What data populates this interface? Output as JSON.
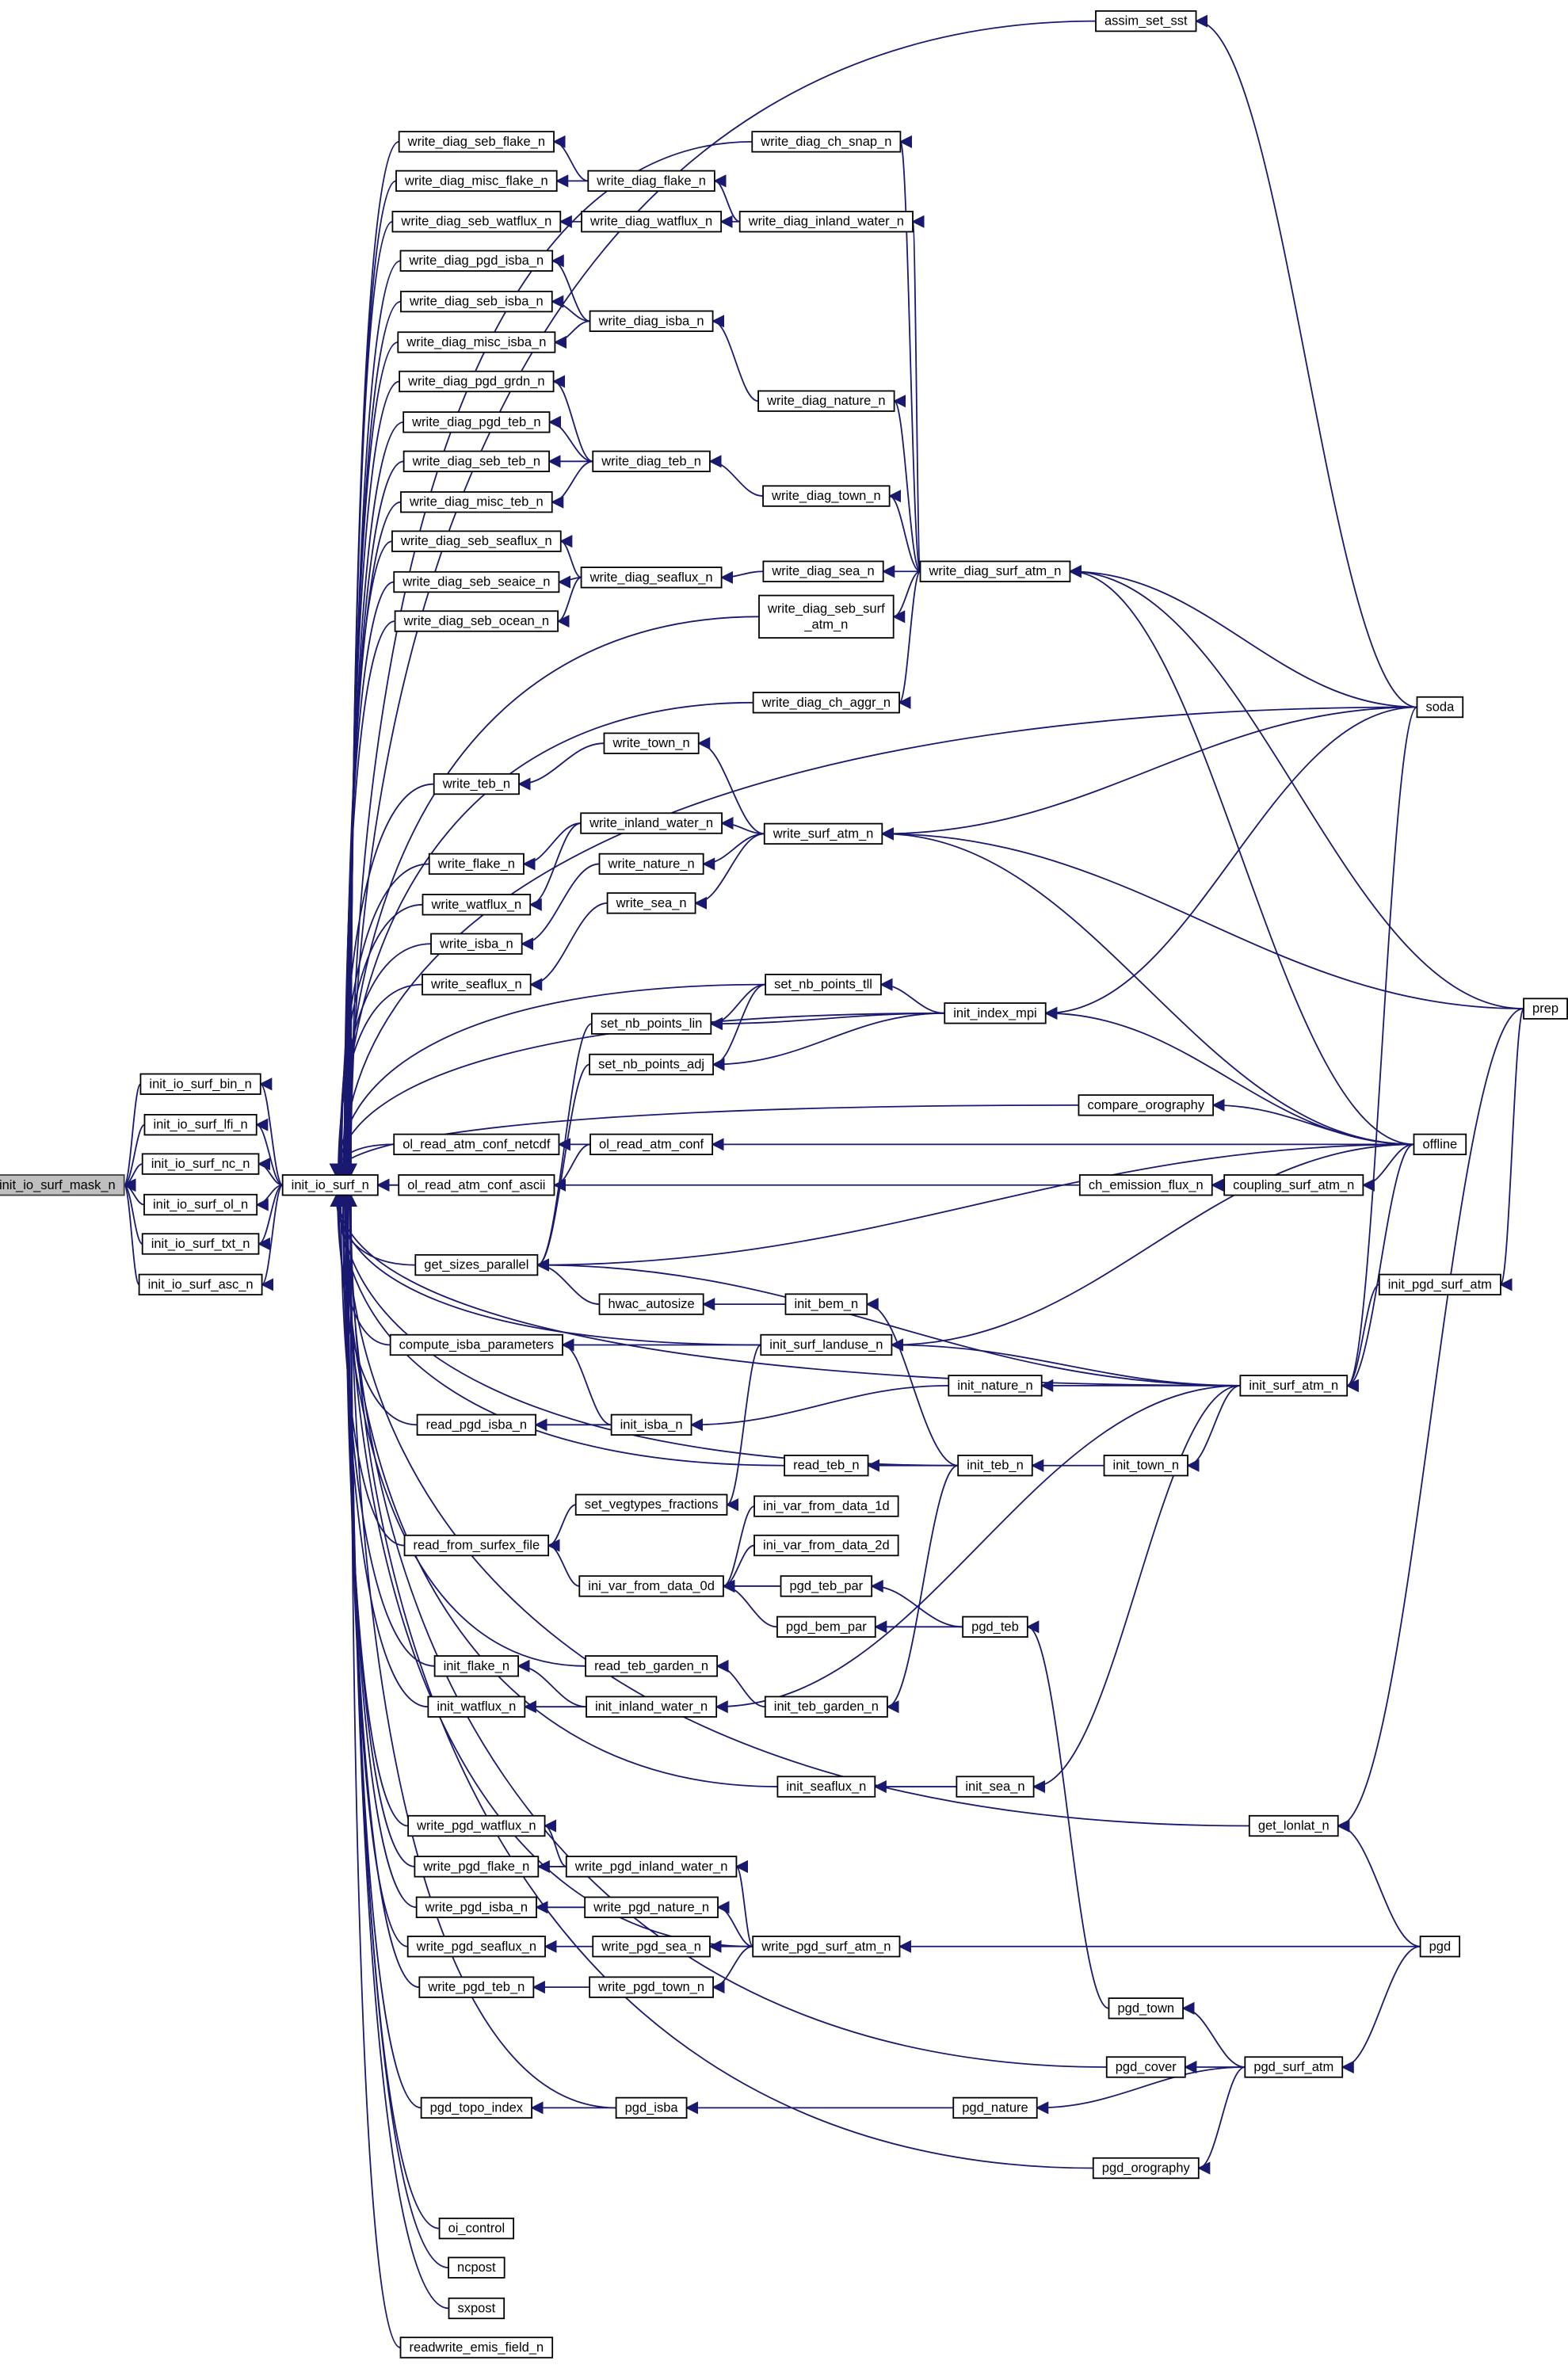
{
  "graph": {
    "root": "init_io_surf_mask_n",
    "colors": {
      "edge": "#191970",
      "root_fill": "#bfbfbf",
      "node_fill": "#ffffff"
    },
    "nodes": [
      {
        "label": "init_io_surf_mask_n"
      },
      {
        "label": "init_io_surf_bin_n"
      },
      {
        "label": "init_io_surf_lfi_n"
      },
      {
        "label": "init_io_surf_nc_n"
      },
      {
        "label": "init_io_surf_ol_n"
      },
      {
        "label": "init_io_surf_txt_n"
      },
      {
        "label": "init_io_surf_asc_n"
      },
      {
        "label": "init_io_surf_n"
      },
      {
        "label": "write_diag_seb_flake_n"
      },
      {
        "label": "write_diag_misc_flake_n"
      },
      {
        "label": "write_diag_seb_watflux_n"
      },
      {
        "label": "write_diag_pgd_isba_n"
      },
      {
        "label": "write_diag_seb_isba_n"
      },
      {
        "label": "write_diag_misc_isba_n"
      },
      {
        "label": "write_diag_pgd_grdn_n"
      },
      {
        "label": "write_diag_pgd_teb_n"
      },
      {
        "label": "write_diag_seb_teb_n"
      },
      {
        "label": "write_diag_misc_teb_n"
      },
      {
        "label": "write_diag_seb_seaflux_n"
      },
      {
        "label": "write_diag_seb_seaice_n"
      },
      {
        "label": "write_diag_seb_ocean_n"
      },
      {
        "label": "write_teb_n"
      },
      {
        "label": "write_flake_n"
      },
      {
        "label": "write_watflux_n"
      },
      {
        "label": "write_isba_n"
      },
      {
        "label": "write_seaflux_n"
      },
      {
        "label": "ol_read_atm_conf_netcdf"
      },
      {
        "label": "ol_read_atm_conf_ascii"
      },
      {
        "label": "get_sizes_parallel"
      },
      {
        "label": "compute_isba_parameters"
      },
      {
        "label": "read_pgd_isba_n"
      },
      {
        "label": "read_from_surfex_file"
      },
      {
        "label": "init_flake_n"
      },
      {
        "label": "init_watflux_n"
      },
      {
        "label": "write_pgd_watflux_n"
      },
      {
        "label": "write_pgd_flake_n"
      },
      {
        "label": "write_pgd_isba_n"
      },
      {
        "label": "write_pgd_seaflux_n"
      },
      {
        "label": "write_pgd_teb_n"
      },
      {
        "label": "pgd_topo_index"
      },
      {
        "label": "oi_control"
      },
      {
        "label": "ncpost"
      },
      {
        "label": "sxpost"
      },
      {
        "label": "readwrite_emis_field_n"
      },
      {
        "label": "write_diag_flake_n"
      },
      {
        "label": "write_diag_watflux_n"
      },
      {
        "label": "write_diag_isba_n"
      },
      {
        "label": "write_diag_teb_n"
      },
      {
        "label": "write_diag_seaflux_n"
      },
      {
        "label": "write_town_n"
      },
      {
        "label": "write_inland_water_n"
      },
      {
        "label": "write_nature_n"
      },
      {
        "label": "write_sea_n"
      },
      {
        "label": "set_nb_points_lin"
      },
      {
        "label": "set_nb_points_adj"
      },
      {
        "label": "ol_read_atm_conf"
      },
      {
        "label": "hwac_autosize"
      },
      {
        "label": "init_isba_n"
      },
      {
        "label": "set_vegtypes_fractions"
      },
      {
        "label": "ini_var_from_data_0d"
      },
      {
        "label": "read_teb_garden_n"
      },
      {
        "label": "init_inland_water_n"
      },
      {
        "label": "write_pgd_inland_water_n"
      },
      {
        "label": "write_pgd_nature_n"
      },
      {
        "label": "write_pgd_sea_n"
      },
      {
        "label": "write_pgd_town_n"
      },
      {
        "label": "pgd_isba"
      },
      {
        "label": "write_diag_ch_snap_n"
      },
      {
        "label": "write_diag_inland_water_n"
      },
      {
        "label": "write_diag_nature_n"
      },
      {
        "label": "write_diag_town_n"
      },
      {
        "label": "write_diag_sea_n"
      },
      {
        "label": "write_diag_seb_surf_atm_n",
        "lines": [
          "write_diag_seb_surf",
          "_atm_n"
        ]
      },
      {
        "label": "write_diag_ch_aggr_n"
      },
      {
        "label": "write_surf_atm_n"
      },
      {
        "label": "set_nb_points_tll"
      },
      {
        "label": "init_bem_n"
      },
      {
        "label": "init_surf_landuse_n"
      },
      {
        "label": "read_teb_n"
      },
      {
        "label": "ini_var_from_data_1d"
      },
      {
        "label": "ini_var_from_data_2d"
      },
      {
        "label": "pgd_teb_par"
      },
      {
        "label": "pgd_bem_par"
      },
      {
        "label": "init_teb_garden_n"
      },
      {
        "label": "init_seaflux_n"
      },
      {
        "label": "write_pgd_surf_atm_n"
      },
      {
        "label": "write_diag_surf_atm_n"
      },
      {
        "label": "init_index_mpi"
      },
      {
        "label": "init_nature_n"
      },
      {
        "label": "init_teb_n"
      },
      {
        "label": "pgd_teb"
      },
      {
        "label": "init_sea_n"
      },
      {
        "label": "pgd_nature"
      },
      {
        "label": "assim_set_sst"
      },
      {
        "label": "compare_orography"
      },
      {
        "label": "ch_emission_flux_n"
      },
      {
        "label": "init_town_n"
      },
      {
        "label": "pgd_town"
      },
      {
        "label": "pgd_cover"
      },
      {
        "label": "pgd_orography"
      },
      {
        "label": "coupling_surf_atm_n"
      },
      {
        "label": "init_surf_atm_n"
      },
      {
        "label": "get_lonlat_n"
      },
      {
        "label": "pgd_surf_atm"
      },
      {
        "label": "soda"
      },
      {
        "label": "offline"
      },
      {
        "label": "init_pgd_surf_atm"
      },
      {
        "label": "pgd"
      },
      {
        "label": "prep"
      }
    ],
    "edges": [
      [
        "init_io_surf_bin_n",
        "init_io_surf_mask_n"
      ],
      [
        "init_io_surf_lfi_n",
        "init_io_surf_mask_n"
      ],
      [
        "init_io_surf_nc_n",
        "init_io_surf_mask_n"
      ],
      [
        "init_io_surf_ol_n",
        "init_io_surf_mask_n"
      ],
      [
        "init_io_surf_txt_n",
        "init_io_surf_mask_n"
      ],
      [
        "init_io_surf_asc_n",
        "init_io_surf_mask_n"
      ],
      [
        "init_io_surf_n",
        "init_io_surf_bin_n"
      ],
      [
        "init_io_surf_n",
        "init_io_surf_lfi_n"
      ],
      [
        "init_io_surf_n",
        "init_io_surf_nc_n"
      ],
      [
        "init_io_surf_n",
        "init_io_surf_ol_n"
      ],
      [
        "init_io_surf_n",
        "init_io_surf_txt_n"
      ],
      [
        "init_io_surf_n",
        "init_io_surf_asc_n"
      ],
      [
        "write_diag_seb_flake_n",
        "init_io_surf_n"
      ],
      [
        "write_diag_misc_flake_n",
        "init_io_surf_n"
      ],
      [
        "write_diag_seb_watflux_n",
        "init_io_surf_n"
      ],
      [
        "write_diag_pgd_isba_n",
        "init_io_surf_n"
      ],
      [
        "write_diag_seb_isba_n",
        "init_io_surf_n"
      ],
      [
        "write_diag_misc_isba_n",
        "init_io_surf_n"
      ],
      [
        "write_diag_pgd_grdn_n",
        "init_io_surf_n"
      ],
      [
        "write_diag_pgd_teb_n",
        "init_io_surf_n"
      ],
      [
        "write_diag_seb_teb_n",
        "init_io_surf_n"
      ],
      [
        "write_diag_misc_teb_n",
        "init_io_surf_n"
      ],
      [
        "write_diag_seb_seaflux_n",
        "init_io_surf_n"
      ],
      [
        "write_diag_seb_seaice_n",
        "init_io_surf_n"
      ],
      [
        "write_diag_seb_ocean_n",
        "init_io_surf_n"
      ],
      [
        "write_teb_n",
        "init_io_surf_n"
      ],
      [
        "write_flake_n",
        "init_io_surf_n"
      ],
      [
        "write_watflux_n",
        "init_io_surf_n"
      ],
      [
        "write_isba_n",
        "init_io_surf_n"
      ],
      [
        "write_seaflux_n",
        "init_io_surf_n"
      ],
      [
        "ol_read_atm_conf_netcdf",
        "init_io_surf_n"
      ],
      [
        "ol_read_atm_conf_ascii",
        "init_io_surf_n"
      ],
      [
        "get_sizes_parallel",
        "init_io_surf_n"
      ],
      [
        "compute_isba_parameters",
        "init_io_surf_n"
      ],
      [
        "read_pgd_isba_n",
        "init_io_surf_n"
      ],
      [
        "read_from_surfex_file",
        "init_io_surf_n"
      ],
      [
        "init_flake_n",
        "init_io_surf_n"
      ],
      [
        "init_watflux_n",
        "init_io_surf_n"
      ],
      [
        "write_pgd_watflux_n",
        "init_io_surf_n"
      ],
      [
        "write_pgd_flake_n",
        "init_io_surf_n"
      ],
      [
        "write_pgd_isba_n",
        "init_io_surf_n"
      ],
      [
        "write_pgd_seaflux_n",
        "init_io_surf_n"
      ],
      [
        "write_pgd_teb_n",
        "init_io_surf_n"
      ],
      [
        "pgd_topo_index",
        "init_io_surf_n"
      ],
      [
        "oi_control",
        "init_io_surf_n"
      ],
      [
        "ncpost",
        "init_io_surf_n"
      ],
      [
        "sxpost",
        "init_io_surf_n"
      ],
      [
        "readwrite_emis_field_n",
        "init_io_surf_n"
      ],
      [
        "assim_set_sst",
        "init_io_surf_n"
      ],
      [
        "soda",
        "init_io_surf_n"
      ],
      [
        "write_diag_ch_snap_n",
        "init_io_surf_n"
      ],
      [
        "write_diag_seb_surf_atm_n",
        "init_io_surf_n"
      ],
      [
        "write_diag_ch_aggr_n",
        "init_io_surf_n"
      ],
      [
        "init_index_mpi",
        "init_io_surf_n"
      ],
      [
        "set_nb_points_tll",
        "init_io_surf_n"
      ],
      [
        "compare_orography",
        "init_io_surf_n"
      ],
      [
        "ch_emission_flux_n",
        "init_io_surf_n"
      ],
      [
        "init_surf_landuse_n",
        "init_io_surf_n"
      ],
      [
        "init_surf_atm_n",
        "init_io_surf_n"
      ],
      [
        "read_teb_n",
        "init_io_surf_n"
      ],
      [
        "init_teb_n",
        "init_io_surf_n"
      ],
      [
        "read_teb_garden_n",
        "init_io_surf_n"
      ],
      [
        "init_seaflux_n",
        "init_io_surf_n"
      ],
      [
        "get_lonlat_n",
        "init_io_surf_n"
      ],
      [
        "write_pgd_surf_atm_n",
        "init_io_surf_n"
      ],
      [
        "pgd_cover",
        "init_io_surf_n"
      ],
      [
        "pgd_isba",
        "init_io_surf_n"
      ],
      [
        "pgd_orography",
        "init_io_surf_n"
      ],
      [
        "write_diag_flake_n",
        "write_diag_seb_flake_n"
      ],
      [
        "write_diag_flake_n",
        "write_diag_misc_flake_n"
      ],
      [
        "write_diag_watflux_n",
        "write_diag_seb_watflux_n"
      ],
      [
        "write_diag_isba_n",
        "write_diag_pgd_isba_n"
      ],
      [
        "write_diag_isba_n",
        "write_diag_seb_isba_n"
      ],
      [
        "write_diag_isba_n",
        "write_diag_misc_isba_n"
      ],
      [
        "write_diag_teb_n",
        "write_diag_pgd_grdn_n"
      ],
      [
        "write_diag_teb_n",
        "write_diag_pgd_teb_n"
      ],
      [
        "write_diag_teb_n",
        "write_diag_seb_teb_n"
      ],
      [
        "write_diag_teb_n",
        "write_diag_misc_teb_n"
      ],
      [
        "write_diag_seaflux_n",
        "write_diag_seb_seaflux_n"
      ],
      [
        "write_diag_seaflux_n",
        "write_diag_seb_seaice_n"
      ],
      [
        "write_diag_seaflux_n",
        "write_diag_seb_ocean_n"
      ],
      [
        "write_diag_inland_water_n",
        "write_diag_flake_n"
      ],
      [
        "write_diag_inland_water_n",
        "write_diag_watflux_n"
      ],
      [
        "write_diag_nature_n",
        "write_diag_isba_n"
      ],
      [
        "write_diag_town_n",
        "write_diag_teb_n"
      ],
      [
        "write_diag_sea_n",
        "write_diag_seaflux_n"
      ],
      [
        "write_diag_surf_atm_n",
        "write_diag_ch_snap_n"
      ],
      [
        "write_diag_surf_atm_n",
        "write_diag_inland_water_n"
      ],
      [
        "write_diag_surf_atm_n",
        "write_diag_nature_n"
      ],
      [
        "write_diag_surf_atm_n",
        "write_diag_town_n"
      ],
      [
        "write_diag_surf_atm_n",
        "write_diag_sea_n"
      ],
      [
        "write_diag_surf_atm_n",
        "write_diag_seb_surf_atm_n"
      ],
      [
        "write_diag_surf_atm_n",
        "write_diag_ch_aggr_n"
      ],
      [
        "soda",
        "assim_set_sst"
      ],
      [
        "soda",
        "write_diag_surf_atm_n"
      ],
      [
        "soda",
        "write_surf_atm_n"
      ],
      [
        "soda",
        "init_index_mpi"
      ],
      [
        "soda",
        "init_surf_atm_n"
      ],
      [
        "prep",
        "write_diag_surf_atm_n"
      ],
      [
        "prep",
        "write_surf_atm_n"
      ],
      [
        "prep",
        "get_lonlat_n"
      ],
      [
        "offline",
        "write_diag_surf_atm_n"
      ],
      [
        "offline",
        "write_surf_atm_n"
      ],
      [
        "offline",
        "init_index_mpi"
      ],
      [
        "offline",
        "compare_orography"
      ],
      [
        "offline",
        "ol_read_atm_conf"
      ],
      [
        "offline",
        "coupling_surf_atm_n"
      ],
      [
        "offline",
        "get_sizes_parallel"
      ],
      [
        "offline",
        "init_surf_landuse_n"
      ],
      [
        "offline",
        "init_surf_atm_n"
      ],
      [
        "write_town_n",
        "write_teb_n"
      ],
      [
        "write_inland_water_n",
        "write_flake_n"
      ],
      [
        "write_inland_water_n",
        "write_watflux_n"
      ],
      [
        "write_nature_n",
        "write_isba_n"
      ],
      [
        "write_sea_n",
        "write_seaflux_n"
      ],
      [
        "write_surf_atm_n",
        "write_town_n"
      ],
      [
        "write_surf_atm_n",
        "write_inland_water_n"
      ],
      [
        "write_surf_atm_n",
        "write_nature_n"
      ],
      [
        "write_surf_atm_n",
        "write_sea_n"
      ],
      [
        "set_nb_points_tll",
        "set_nb_points_lin"
      ],
      [
        "set_nb_points_tll",
        "set_nb_points_adj"
      ],
      [
        "init_index_mpi",
        "set_nb_points_tll"
      ],
      [
        "init_index_mpi",
        "set_nb_points_lin"
      ],
      [
        "init_index_mpi",
        "set_nb_points_adj"
      ],
      [
        "set_nb_points_lin",
        "get_sizes_parallel"
      ],
      [
        "set_nb_points_adj",
        "get_sizes_parallel"
      ],
      [
        "hwac_autosize",
        "get_sizes_parallel"
      ],
      [
        "init_surf_atm_n",
        "get_sizes_parallel"
      ],
      [
        "ol_read_atm_conf",
        "ol_read_atm_conf_netcdf"
      ],
      [
        "ol_read_atm_conf",
        "ol_read_atm_conf_ascii"
      ],
      [
        "coupling_surf_atm_n",
        "ch_emission_flux_n"
      ],
      [
        "init_bem_n",
        "hwac_autosize"
      ],
      [
        "init_teb_n",
        "init_bem_n"
      ],
      [
        "init_teb_n",
        "read_teb_n"
      ],
      [
        "init_teb_n",
        "init_teb_garden_n"
      ],
      [
        "init_town_n",
        "init_teb_n"
      ],
      [
        "init_surf_atm_n",
        "init_town_n"
      ],
      [
        "init_surf_atm_n",
        "init_nature_n"
      ],
      [
        "init_surf_atm_n",
        "init_sea_n"
      ],
      [
        "init_surf_atm_n",
        "init_inland_water_n"
      ],
      [
        "init_surf_atm_n",
        "init_surf_landuse_n"
      ],
      [
        "init_nature_n",
        "init_isba_n"
      ],
      [
        "init_isba_n",
        "compute_isba_parameters"
      ],
      [
        "init_isba_n",
        "read_pgd_isba_n"
      ],
      [
        "init_surf_landuse_n",
        "compute_isba_parameters"
      ],
      [
        "init_surf_landuse_n",
        "set_vegtypes_fractions"
      ],
      [
        "set_vegtypes_fractions",
        "read_from_surfex_file"
      ],
      [
        "ini_var_from_data_0d",
        "read_from_surfex_file"
      ],
      [
        "ini_var_from_data_1d",
        "ini_var_from_data_0d"
      ],
      [
        "ini_var_from_data_2d",
        "ini_var_from_data_0d"
      ],
      [
        "pgd_teb_par",
        "ini_var_from_data_0d"
      ],
      [
        "pgd_bem_par",
        "ini_var_from_data_0d"
      ],
      [
        "pgd_teb",
        "pgd_teb_par"
      ],
      [
        "pgd_teb",
        "pgd_bem_par"
      ],
      [
        "pgd_town",
        "pgd_teb"
      ],
      [
        "pgd_surf_atm",
        "pgd_town"
      ],
      [
        "pgd_surf_atm",
        "pgd_cover"
      ],
      [
        "pgd_surf_atm",
        "pgd_nature"
      ],
      [
        "pgd_surf_atm",
        "pgd_orography"
      ],
      [
        "pgd_nature",
        "pgd_isba"
      ],
      [
        "pgd_isba",
        "pgd_topo_index"
      ],
      [
        "init_teb_garden_n",
        "read_teb_garden_n"
      ],
      [
        "init_inland_water_n",
        "init_flake_n"
      ],
      [
        "init_inland_water_n",
        "init_watflux_n"
      ],
      [
        "init_sea_n",
        "init_seaflux_n"
      ],
      [
        "pgd",
        "write_pgd_surf_atm_n"
      ],
      [
        "pgd",
        "get_lonlat_n"
      ],
      [
        "pgd",
        "pgd_surf_atm"
      ],
      [
        "init_pgd_surf_atm",
        "init_surf_atm_n"
      ],
      [
        "prep",
        "init_pgd_surf_atm"
      ],
      [
        "write_pgd_surf_atm_n",
        "write_pgd_inland_water_n"
      ],
      [
        "write_pgd_surf_atm_n",
        "write_pgd_nature_n"
      ],
      [
        "write_pgd_surf_atm_n",
        "write_pgd_sea_n"
      ],
      [
        "write_pgd_surf_atm_n",
        "write_pgd_town_n"
      ],
      [
        "write_pgd_inland_water_n",
        "write_pgd_watflux_n"
      ],
      [
        "write_pgd_inland_water_n",
        "write_pgd_flake_n"
      ],
      [
        "write_pgd_nature_n",
        "write_pgd_isba_n"
      ],
      [
        "write_pgd_sea_n",
        "write_pgd_seaflux_n"
      ],
      [
        "write_pgd_town_n",
        "write_pgd_teb_n"
      ]
    ]
  }
}
